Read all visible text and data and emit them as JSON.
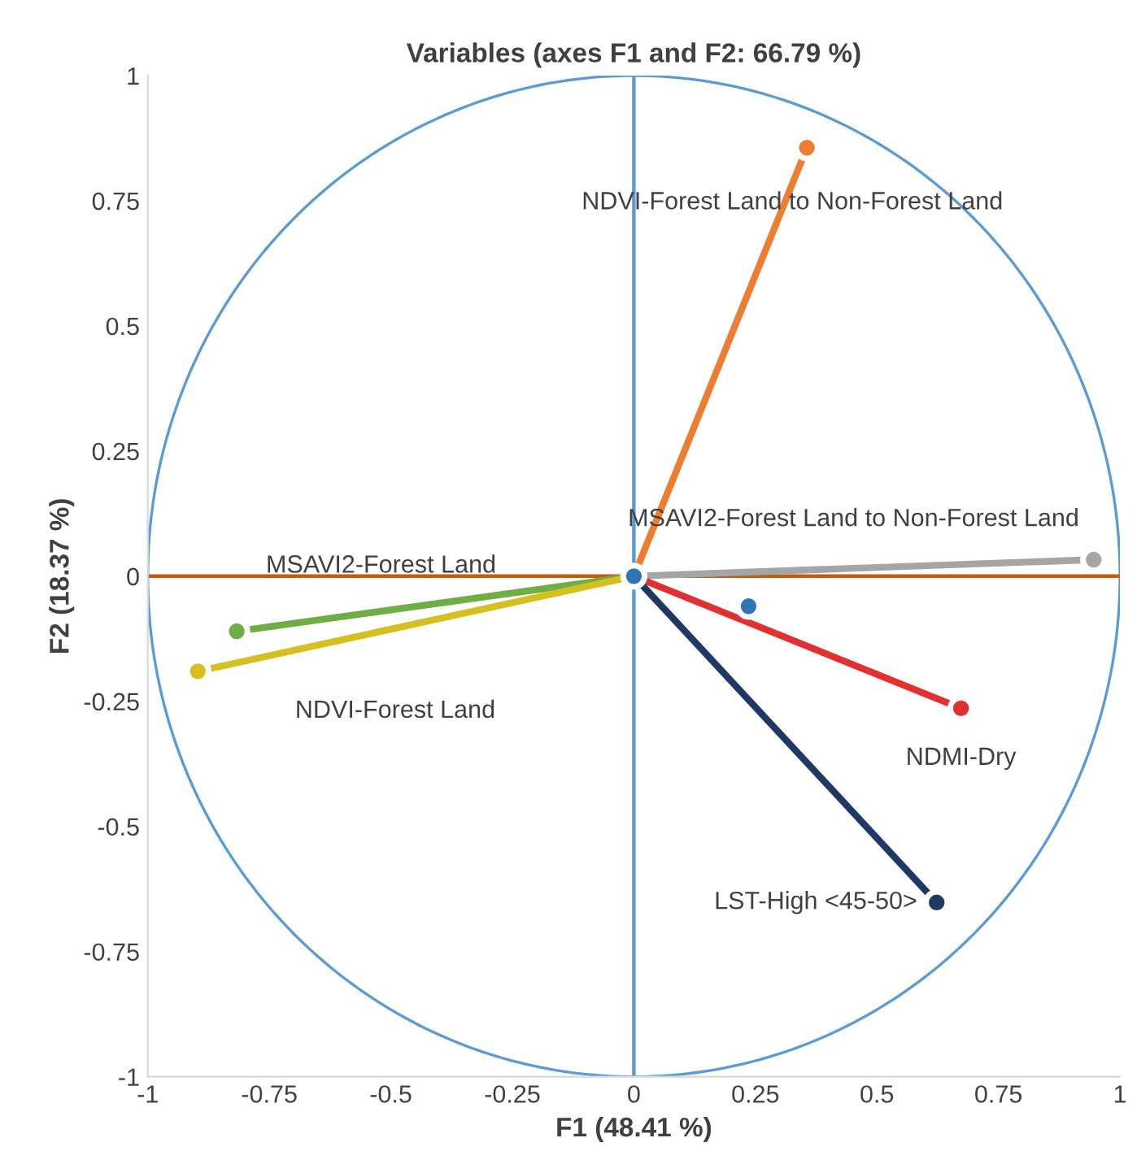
{
  "chart_data": {
    "type": "line",
    "title": "Variables (axes F1 and F2: 66.79 %)",
    "xlabel": "F1 (48.41 %)",
    "ylabel": "F2 (18.37 %)",
    "xlim": [
      -1,
      1
    ],
    "ylim": [
      -1,
      1
    ],
    "xticks": [
      -1,
      -0.75,
      -0.5,
      -0.25,
      0,
      0.25,
      0.5,
      0.75,
      1
    ],
    "yticks": [
      -1,
      -0.75,
      -0.5,
      -0.25,
      0,
      0.25,
      0.5,
      0.75,
      1
    ],
    "grid": false,
    "marker": "circle",
    "series": [
      {
        "name": "NDVI-Forest Land to Non-Forest Land",
        "color": "#ed7d31",
        "x": [
          0,
          0.356
        ],
        "values": [
          0,
          0.856
        ]
      },
      {
        "name": "MSAVI2-Forest Land to Non-Forest Land",
        "color": "#a5a5a5",
        "x": [
          0,
          0.946
        ],
        "values": [
          0,
          0.033
        ]
      },
      {
        "name": "NDMI-Dry",
        "color": "#e03030",
        "x": [
          0,
          0.673
        ],
        "values": [
          0,
          -0.264
        ]
      },
      {
        "name": "LST-High <45-50>",
        "color": "#203864",
        "x": [
          0,
          0.623
        ],
        "values": [
          0,
          -0.652
        ]
      },
      {
        "name": "MSAVI2-Forest Land",
        "color": "#70ad47",
        "x": [
          0,
          -0.817
        ],
        "values": [
          0,
          -0.11
        ]
      },
      {
        "name": "NDVI-Forest Land",
        "color": "#d4c020",
        "x": [
          0,
          -0.897
        ],
        "values": [
          0,
          -0.19
        ]
      },
      {
        "type": "scatter",
        "color": "#2e75b6",
        "x": [
          0.236,
          0
        ],
        "values": [
          -0.06,
          0
        ]
      }
    ],
    "ref_lines": [
      {
        "axis": "x",
        "value": 0,
        "color": "#5b9bd5"
      },
      {
        "axis": "y",
        "value": 0,
        "color": "#c55a11"
      }
    ]
  }
}
